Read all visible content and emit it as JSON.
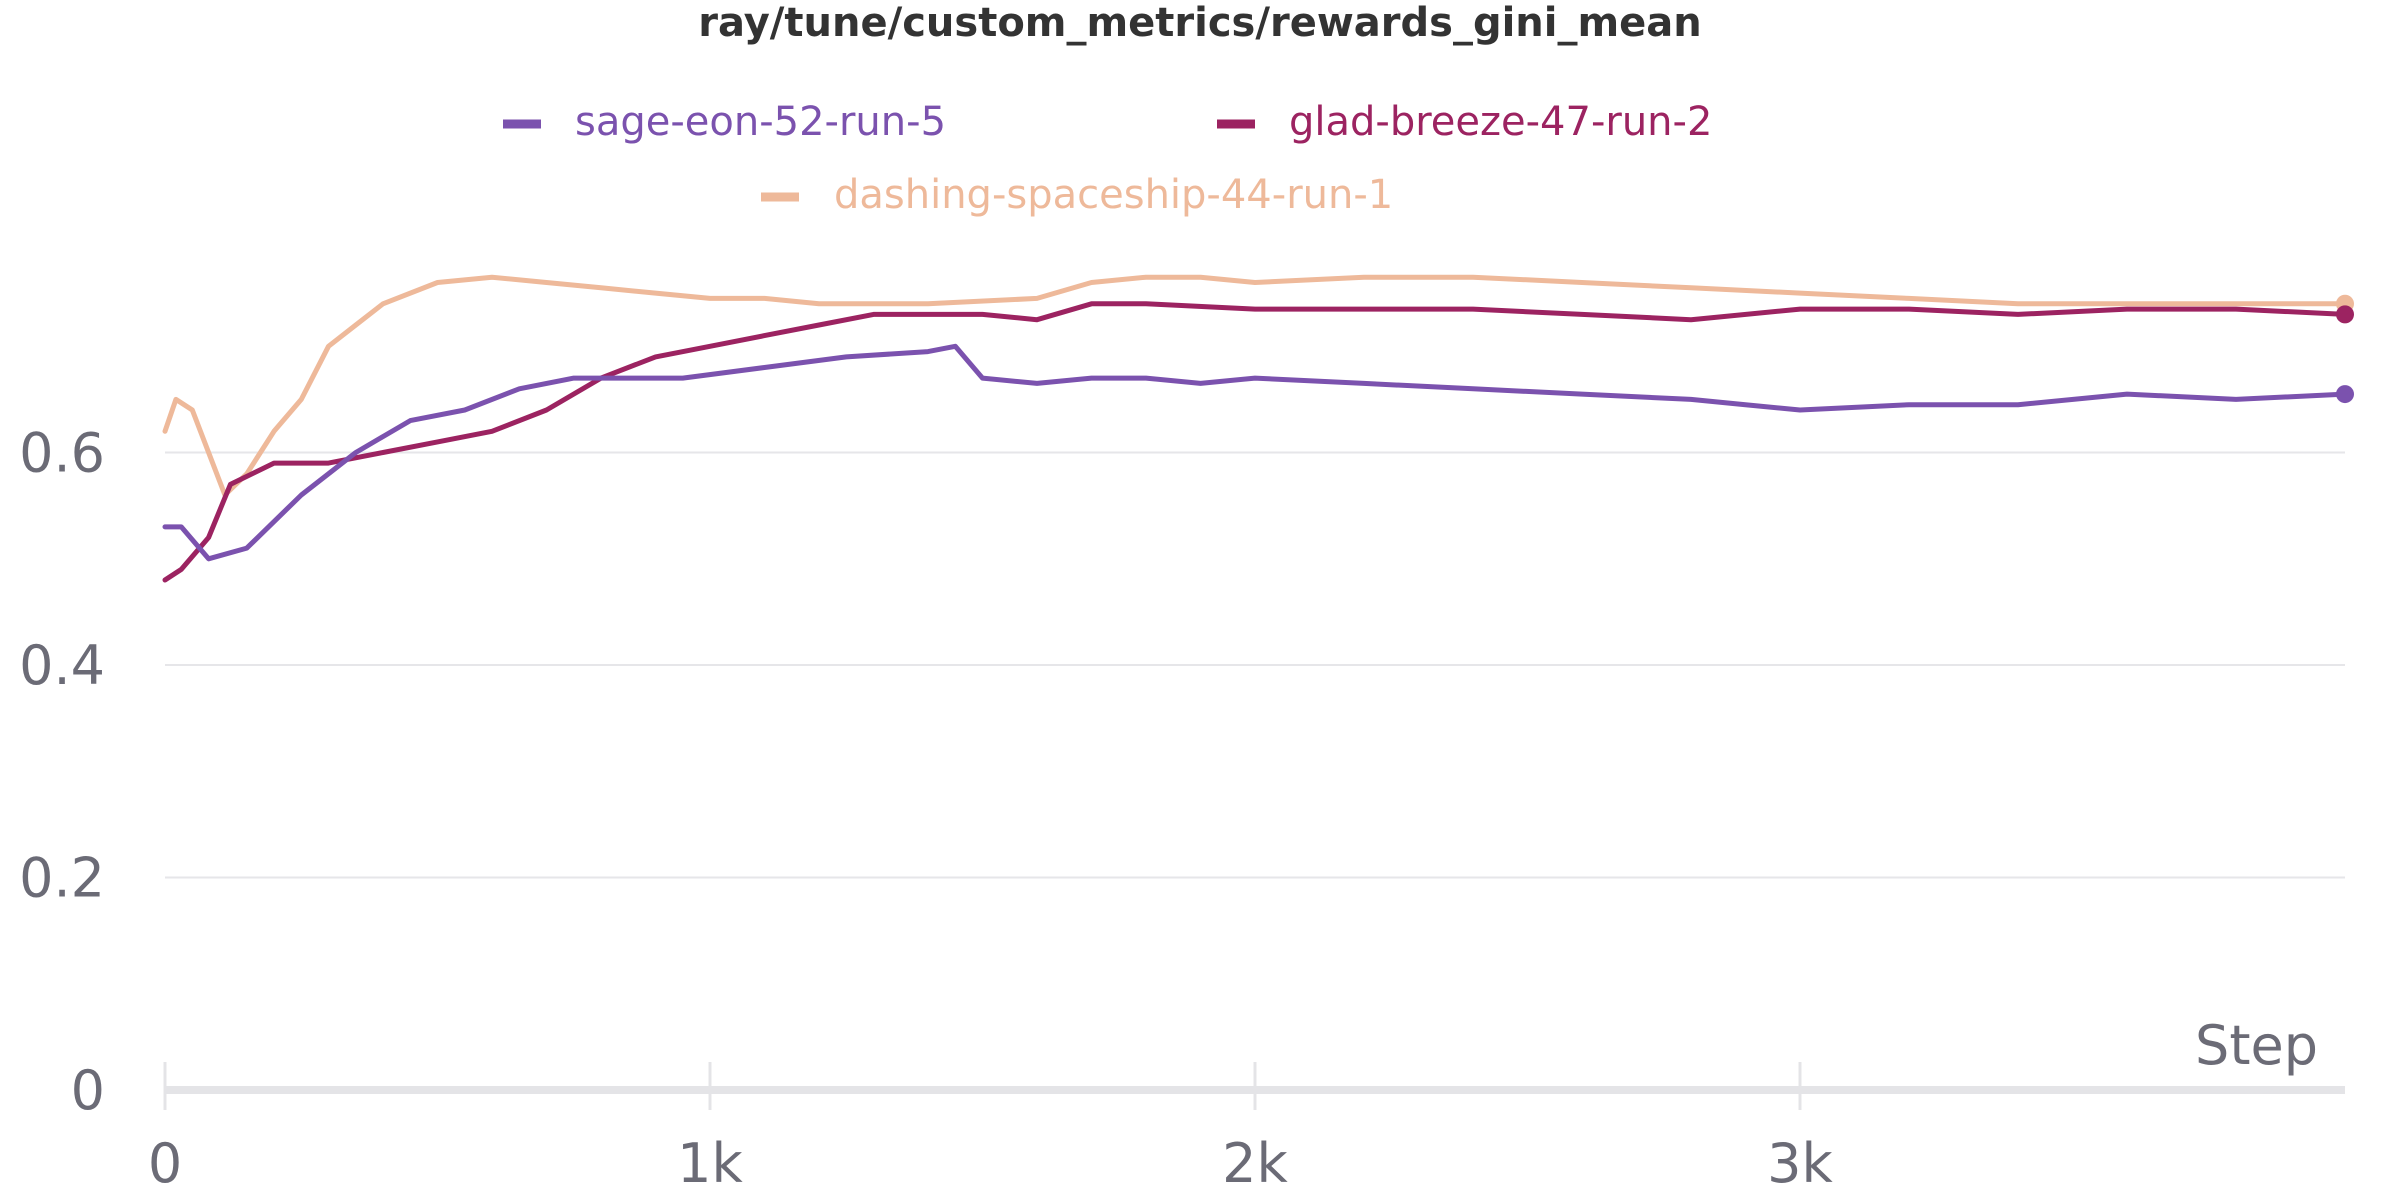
{
  "chart_data": {
    "type": "line",
    "title": "ray/tune/custom_metrics/rewards_gini_mean",
    "xlabel": "Step",
    "ylabel": "",
    "xlim": [
      0,
      4000
    ],
    "ylim": [
      0,
      0.8
    ],
    "x_ticks": [
      0,
      1000,
      2000,
      3000
    ],
    "x_tick_labels": [
      "0",
      "1k",
      "2k",
      "3k"
    ],
    "y_ticks": [
      0,
      0.2,
      0.4,
      0.6
    ],
    "y_tick_labels": [
      "0",
      "0.2",
      "0.4",
      "0.6"
    ],
    "grid": true,
    "legend_position": "top",
    "series": [
      {
        "name": "sage-eon-52-run-5",
        "color": "#7b52ae",
        "x": [
          0,
          30,
          80,
          150,
          250,
          350,
          450,
          550,
          650,
          750,
          850,
          950,
          1100,
          1250,
          1400,
          1450,
          1500,
          1600,
          1700,
          1800,
          1900,
          2000,
          2200,
          2400,
          2600,
          2800,
          2900,
          3000,
          3200,
          3400,
          3600,
          3800,
          4000
        ],
        "values": [
          0.53,
          0.53,
          0.5,
          0.51,
          0.56,
          0.6,
          0.63,
          0.64,
          0.66,
          0.67,
          0.67,
          0.67,
          0.68,
          0.69,
          0.695,
          0.7,
          0.67,
          0.665,
          0.67,
          0.67,
          0.665,
          0.67,
          0.665,
          0.66,
          0.655,
          0.65,
          0.645,
          0.64,
          0.645,
          0.645,
          0.655,
          0.65,
          0.655
        ]
      },
      {
        "name": "glad-breeze-47-run-2",
        "color": "#9c2361",
        "x": [
          0,
          30,
          80,
          120,
          200,
          300,
          400,
          500,
          600,
          700,
          800,
          900,
          1000,
          1100,
          1200,
          1300,
          1400,
          1500,
          1600,
          1700,
          1800,
          2000,
          2200,
          2400,
          2600,
          2800,
          3000,
          3200,
          3400,
          3600,
          3800,
          4000
        ],
        "values": [
          0.48,
          0.49,
          0.52,
          0.57,
          0.59,
          0.59,
          0.6,
          0.61,
          0.62,
          0.64,
          0.67,
          0.69,
          0.7,
          0.71,
          0.72,
          0.73,
          0.73,
          0.73,
          0.725,
          0.74,
          0.74,
          0.735,
          0.735,
          0.735,
          0.73,
          0.725,
          0.735,
          0.735,
          0.73,
          0.735,
          0.735,
          0.73
        ]
      },
      {
        "name": "dashing-spaceship-44-run-1",
        "color": "#eeb99a",
        "x": [
          0,
          20,
          50,
          80,
          110,
          150,
          200,
          250,
          300,
          350,
          400,
          500,
          600,
          700,
          800,
          900,
          1000,
          1100,
          1200,
          1400,
          1600,
          1700,
          1800,
          1900,
          2000,
          2200,
          2400,
          2600,
          2800,
          3000,
          3200,
          3400,
          3600,
          3800,
          4000
        ],
        "values": [
          0.62,
          0.65,
          0.64,
          0.6,
          0.56,
          0.58,
          0.62,
          0.65,
          0.7,
          0.72,
          0.74,
          0.76,
          0.765,
          0.76,
          0.755,
          0.75,
          0.745,
          0.745,
          0.74,
          0.74,
          0.745,
          0.76,
          0.765,
          0.765,
          0.76,
          0.765,
          0.765,
          0.76,
          0.755,
          0.75,
          0.745,
          0.74,
          0.74,
          0.74,
          0.74
        ]
      }
    ]
  }
}
